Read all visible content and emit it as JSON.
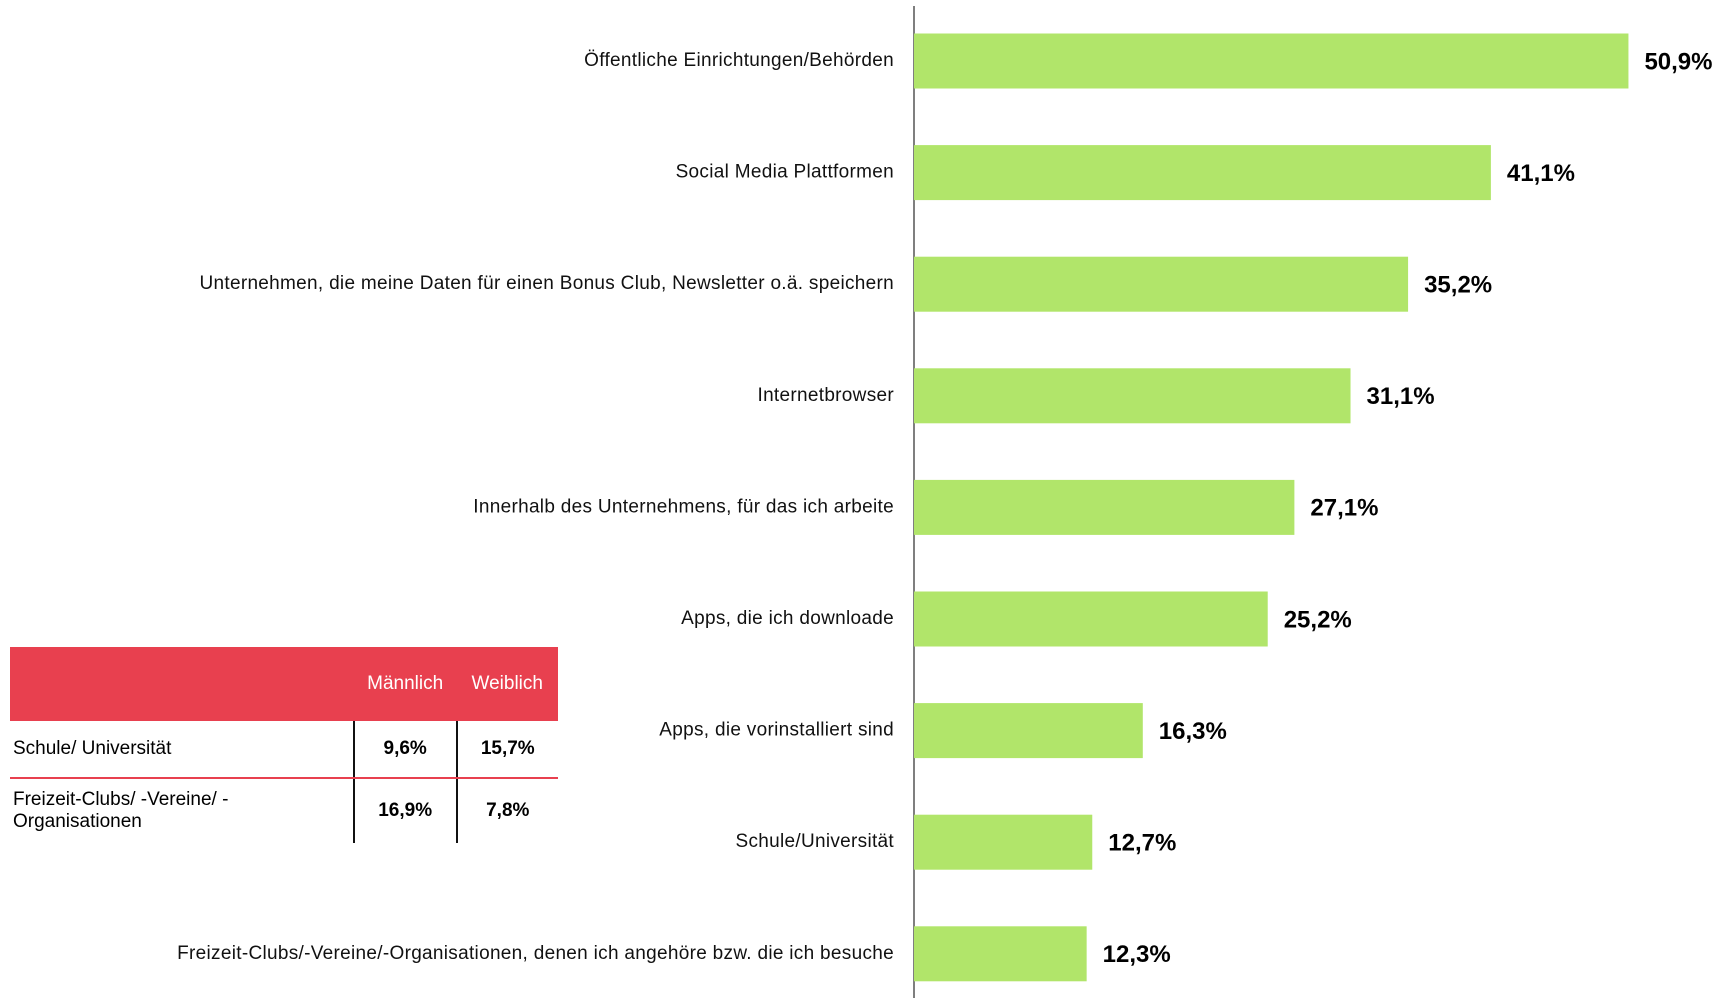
{
  "chart_data": {
    "type": "barh",
    "categories": [
      "Öffentliche Einrichtungen/Behörden",
      "Social Media Plattformen",
      "Unternehmen, die meine Daten für einen Bonus Club, Newsletter o.ä. speichern",
      "Internetbrowser",
      "Innerhalb des Unternehmens, für das ich arbeite",
      "Apps, die ich downloade",
      "Apps, die vorinstalliert sind",
      "Schule/Universität",
      "Freizeit-Clubs/-Vereine/-Organisationen, denen ich angehöre bzw. die ich besuche"
    ],
    "values": [
      50.9,
      41.1,
      35.2,
      31.1,
      27.1,
      25.2,
      16.3,
      12.7,
      12.3
    ],
    "value_labels": [
      "50,9%",
      "41,1%",
      "35,2%",
      "31,1%",
      "27,1%",
      "25,2%",
      "16,3%",
      "12,7%",
      "12,3%"
    ],
    "color": "#b1e56a",
    "xlim": [
      0,
      55
    ]
  },
  "table": {
    "header": [
      "Männlich",
      "Weiblich"
    ],
    "rows": [
      [
        "Schule/ Universität",
        "9,6%",
        "15,7%"
      ],
      [
        "Freizeit-Clubs/ -Vereine/ -Organisationen",
        "16,9%",
        "7,8%"
      ]
    ]
  }
}
